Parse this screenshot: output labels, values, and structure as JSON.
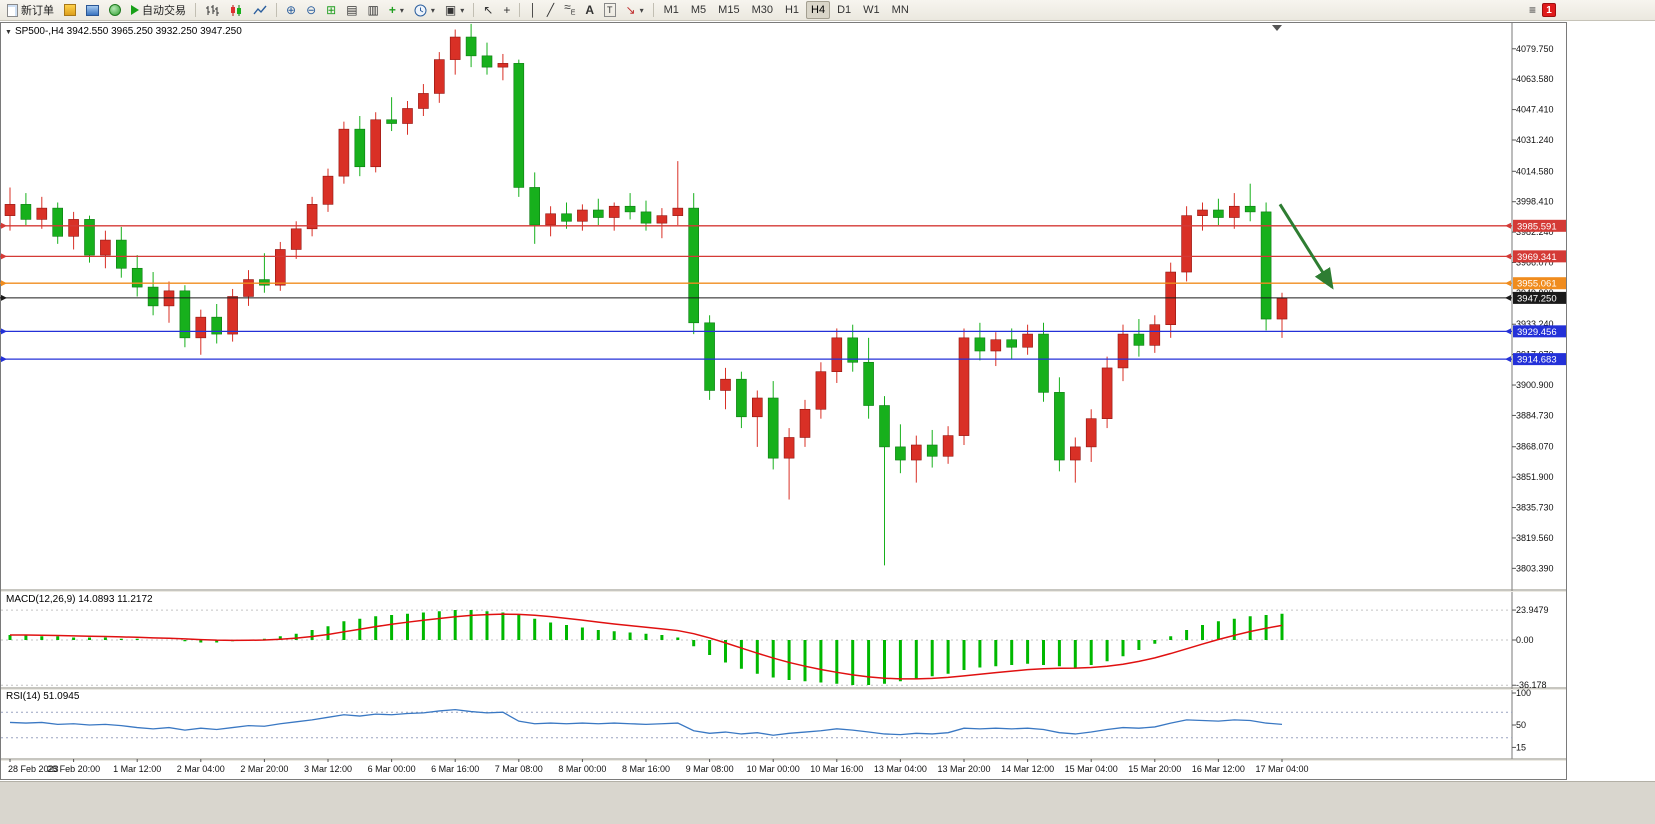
{
  "toolbar": {
    "new_order": "新订单",
    "auto_trading": "自动交易",
    "text_tool": "A",
    "label_tool": "T",
    "timeframes": [
      "M1",
      "M5",
      "M15",
      "M30",
      "H1",
      "H4",
      "D1",
      "W1",
      "MN"
    ],
    "active_timeframe": "H4",
    "notification_count": "1"
  },
  "chart_data": {
    "type": "candlestick",
    "title": "SP500-,H4 3942.550 3965.250 3932.250 3947.250",
    "symbol": "SP500-",
    "timeframe": "H4",
    "open": 3942.55,
    "high": 3965.25,
    "low": 3932.25,
    "close": 3947.25,
    "up_color": "#d93026",
    "down_color": "#17b01c",
    "ylim": [
      3798,
      4095
    ],
    "price_axis_labels": [
      "4079.750",
      "4063.580",
      "4047.410",
      "4031.240",
      "4014.580",
      "3998.410",
      "3982.240",
      "3966.070",
      "3949.900",
      "3933.240",
      "3917.070",
      "3900.900",
      "3884.730",
      "3868.070",
      "3851.900",
      "3835.730",
      "3819.560",
      "3803.390"
    ],
    "time_axis_labels": [
      "28 Feb 2023",
      "28 Feb 20:00",
      "1 Mar 12:00",
      "2 Mar 04:00",
      "2 Mar 20:00",
      "3 Mar 12:00",
      "6 Mar 00:00",
      "6 Mar 16:00",
      "7 Mar 08:00",
      "8 Mar 00:00",
      "8 Mar 16:00",
      "9 Mar 08:00",
      "10 Mar 00:00",
      "10 Mar 16:00",
      "13 Mar 04:00",
      "13 Mar 20:00",
      "14 Mar 12:00",
      "15 Mar 04:00",
      "15 Mar 20:00",
      "16 Mar 12:00",
      "17 Mar 04:00"
    ],
    "candles_ohlc": [
      [
        3991,
        4006,
        3983,
        3997
      ],
      [
        3997,
        4003,
        3986,
        3989
      ],
      [
        3989,
        4001,
        3984,
        3995
      ],
      [
        3995,
        3998,
        3976,
        3980
      ],
      [
        3980,
        3993,
        3973,
        3989
      ],
      [
        3989,
        3991,
        3966,
        3970
      ],
      [
        3970,
        3983,
        3963,
        3978
      ],
      [
        3978,
        3985,
        3958,
        3963
      ],
      [
        3963,
        3970,
        3948,
        3953
      ],
      [
        3953,
        3961,
        3938,
        3943
      ],
      [
        3943,
        3956,
        3934,
        3951
      ],
      [
        3951,
        3954,
        3921,
        3926
      ],
      [
        3926,
        3941,
        3917,
        3937
      ],
      [
        3937,
        3944,
        3923,
        3928
      ],
      [
        3928,
        3952,
        3924,
        3948
      ],
      [
        3948,
        3962,
        3943,
        3957
      ],
      [
        3957,
        3971,
        3950,
        3954
      ],
      [
        3954,
        3977,
        3951,
        3973
      ],
      [
        3973,
        3988,
        3968,
        3984
      ],
      [
        3984,
        4001,
        3980,
        3997
      ],
      [
        3997,
        4016,
        3993,
        4012
      ],
      [
        4012,
        4041,
        4008,
        4037
      ],
      [
        4037,
        4044,
        4012,
        4017
      ],
      [
        4017,
        4046,
        4014,
        4042
      ],
      [
        4042,
        4054,
        4036,
        4040
      ],
      [
        4040,
        4052,
        4034,
        4048
      ],
      [
        4048,
        4061,
        4044,
        4056
      ],
      [
        4056,
        4078,
        4051,
        4074
      ],
      [
        4074,
        4090,
        4066,
        4086
      ],
      [
        4086,
        4093,
        4070,
        4076
      ],
      [
        4076,
        4083,
        4066,
        4070
      ],
      [
        4070,
        4077,
        4063,
        4072
      ],
      [
        4072,
        4074,
        4001,
        4006
      ],
      [
        4006,
        4014,
        3976,
        3986
      ],
      [
        3986,
        3996,
        3980,
        3992
      ],
      [
        3992,
        3998,
        3984,
        3988
      ],
      [
        3988,
        3997,
        3983,
        3994
      ],
      [
        3994,
        4000,
        3986,
        3990
      ],
      [
        3990,
        3998,
        3983,
        3996
      ],
      [
        3996,
        4003,
        3989,
        3993
      ],
      [
        3993,
        3999,
        3983,
        3987
      ],
      [
        3987,
        3995,
        3979,
        3991
      ],
      [
        3991,
        4020,
        3986,
        3995
      ],
      [
        3995,
        4003,
        3928,
        3934
      ],
      [
        3934,
        3938,
        3893,
        3898
      ],
      [
        3898,
        3910,
        3888,
        3904
      ],
      [
        3904,
        3908,
        3878,
        3884
      ],
      [
        3884,
        3898,
        3868,
        3894
      ],
      [
        3894,
        3903,
        3856,
        3862
      ],
      [
        3862,
        3878,
        3840,
        3873
      ],
      [
        3873,
        3893,
        3868,
        3888
      ],
      [
        3888,
        3913,
        3883,
        3908
      ],
      [
        3908,
        3931,
        3902,
        3926
      ],
      [
        3926,
        3933,
        3908,
        3913
      ],
      [
        3913,
        3926,
        3883,
        3890
      ],
      [
        3890,
        3895,
        3805,
        3868
      ],
      [
        3868,
        3880,
        3854,
        3861
      ],
      [
        3861,
        3874,
        3849,
        3869
      ],
      [
        3869,
        3877,
        3857,
        3863
      ],
      [
        3863,
        3879,
        3859,
        3874
      ],
      [
        3874,
        3931,
        3869,
        3926
      ],
      [
        3926,
        3934,
        3914,
        3919
      ],
      [
        3919,
        3929,
        3911,
        3925
      ],
      [
        3925,
        3931,
        3915,
        3921
      ],
      [
        3921,
        3933,
        3917,
        3928
      ],
      [
        3928,
        3934,
        3892,
        3897
      ],
      [
        3897,
        3905,
        3855,
        3861
      ],
      [
        3861,
        3873,
        3849,
        3868
      ],
      [
        3868,
        3888,
        3860,
        3883
      ],
      [
        3883,
        3916,
        3878,
        3910
      ],
      [
        3910,
        3933,
        3903,
        3928
      ],
      [
        3928,
        3936,
        3916,
        3922
      ],
      [
        3922,
        3938,
        3918,
        3933
      ],
      [
        3933,
        3966,
        3926,
        3961
      ],
      [
        3961,
        3996,
        3956,
        3991
      ],
      [
        3991,
        3998,
        3983,
        3994
      ],
      [
        3994,
        4000,
        3986,
        3990
      ],
      [
        3990,
        4003,
        3984,
        3996
      ],
      [
        3996,
        4008,
        3988,
        3993
      ],
      [
        3993,
        3998,
        3930,
        3936
      ],
      [
        3936,
        3950,
        3926,
        3947
      ]
    ],
    "levels": [
      {
        "label": "3985.591",
        "price": 3985.591,
        "color": "#d43a36",
        "kind": "resistance"
      },
      {
        "label": "3969.341",
        "price": 3969.341,
        "color": "#d43a36",
        "kind": "resistance"
      },
      {
        "label": "3955.061",
        "price": 3955.061,
        "color": "#f08c1e",
        "kind": "pivot"
      },
      {
        "label": "3947.250",
        "price": 3947.25,
        "color": "#1a1a1a",
        "kind": "bid"
      },
      {
        "label": "3929.456",
        "price": 3929.456,
        "color": "#2431d8",
        "kind": "support"
      },
      {
        "label": "3914.683",
        "price": 3914.683,
        "color": "#2431d8",
        "kind": "support"
      }
    ],
    "annotation_arrow": {
      "color": "#2e7d32",
      "from_price": 3997,
      "to_price": 3953,
      "note": "down-right arrow"
    },
    "indicators": [
      {
        "name": "MACD",
        "label": "MACD(12,26,9) 14.0893 11.2172",
        "params": "12,26,9",
        "main_value": "14.0893",
        "signal_value": "11.2172",
        "axis_labels": [
          "23.9479",
          "0.00",
          "-36.178"
        ],
        "histogram_color": "#00b800",
        "signal_color": "#e01010",
        "histogram": [
          4,
          4,
          3,
          3,
          2,
          2,
          2,
          1,
          1,
          0,
          0,
          -1,
          -2,
          -2,
          -1,
          0,
          1,
          3,
          5,
          8,
          11,
          15,
          17,
          19,
          20,
          21,
          22,
          23,
          24,
          24,
          23,
          22,
          20,
          17,
          14,
          12,
          10,
          8,
          7,
          6,
          5,
          4,
          2,
          -5,
          -12,
          -18,
          -23,
          -27,
          -30,
          -32,
          -33,
          -34,
          -35,
          -36,
          -36,
          -35,
          -33,
          -31,
          -29,
          -27,
          -24,
          -22,
          -21,
          -20,
          -19,
          -20,
          -21,
          -22,
          -20,
          -17,
          -13,
          -8,
          -3,
          3,
          8,
          12,
          15,
          17,
          19,
          20,
          21
        ]
      },
      {
        "name": "RSI",
        "label": "RSI(14) 51.0945",
        "period": "14",
        "value": "51.0945",
        "axis_labels": [
          "100",
          "50",
          "15"
        ],
        "line_color": "#3a78c3",
        "levels": [
          70,
          30
        ],
        "values": [
          54,
          53,
          54,
          51,
          52,
          50,
          51,
          49,
          46,
          44,
          46,
          42,
          45,
          43,
          46,
          49,
          48,
          52,
          55,
          58,
          62,
          66,
          64,
          67,
          66,
          68,
          69,
          72,
          74,
          71,
          69,
          70,
          56,
          52,
          53,
          52,
          53,
          52,
          53,
          52,
          51,
          52,
          53,
          41,
          37,
          39,
          36,
          38,
          34,
          37,
          39,
          41,
          44,
          42,
          39,
          36,
          35,
          37,
          36,
          38,
          45,
          44,
          45,
          44,
          45,
          43,
          38,
          36,
          39,
          43,
          46,
          45,
          47,
          53,
          58,
          57,
          56,
          58,
          57,
          53,
          51
        ]
      }
    ]
  }
}
